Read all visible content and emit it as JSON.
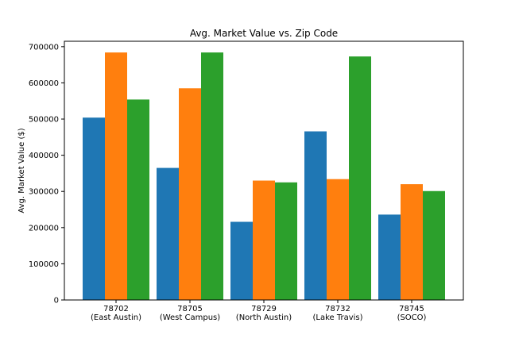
{
  "chart_data": {
    "type": "bar",
    "title": "Avg. Market Value vs. Zip Code",
    "xlabel": "",
    "ylabel": "Avg. Market Value ($)",
    "ylim": [
      0,
      715000
    ],
    "yticks": [
      0,
      100000,
      200000,
      300000,
      400000,
      500000,
      600000,
      700000
    ],
    "ytick_labels": [
      "0",
      "100000",
      "200000",
      "300000",
      "400000",
      "500000",
      "600000",
      "700000"
    ],
    "categories": [
      "78702\n(East Austin)",
      "78705\n(West Campus)",
      "78729\n(North Austin)",
      "78732\n(Lake Travis)",
      "78745\n(SOCO)"
    ],
    "category_lines": [
      [
        "78702",
        "(East Austin)"
      ],
      [
        "78705",
        "(West Campus)"
      ],
      [
        "78729",
        "(North Austin)"
      ],
      [
        "78732",
        "(Lake Travis)"
      ],
      [
        "78745",
        "(SOCO)"
      ]
    ],
    "series": [
      {
        "values": [
          504000,
          365000,
          216000,
          466000,
          236000
        ],
        "color": "#1f77b4"
      },
      {
        "values": [
          684000,
          585000,
          330000,
          334000,
          320000
        ],
        "color": "#ff7f0e"
      },
      {
        "values": [
          554000,
          684000,
          325000,
          673000,
          301000
        ],
        "color": "#2ca02c"
      }
    ],
    "grid": false,
    "legend": "none"
  }
}
